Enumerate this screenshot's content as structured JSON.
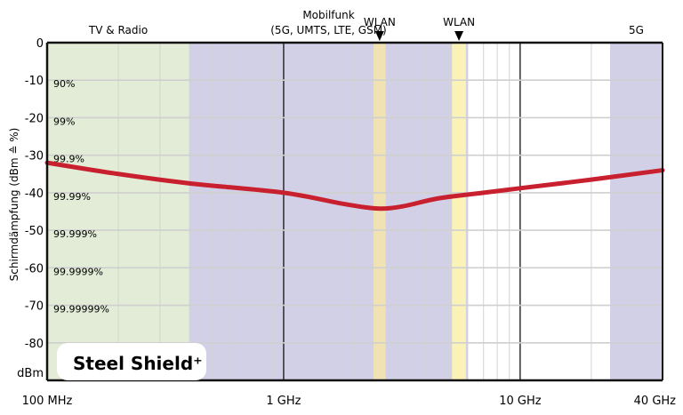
{
  "chart_data": {
    "type": "line",
    "title": "",
    "xscale": "log",
    "xlim_hz": [
      100000000,
      40000000000
    ],
    "ylim": [
      -90,
      0
    ],
    "ylabel": "Schirmdämpfung (dBm ≙ %)",
    "y_unit_label": "dBm",
    "grid": true,
    "x_tick_labels": [
      {
        "hz": 100000000,
        "label": "100 MHz"
      },
      {
        "hz": 1000000000,
        "label": "1 GHz"
      },
      {
        "hz": 10000000000,
        "label": "10 GHz"
      },
      {
        "hz": 40000000000,
        "label": "40 GHz"
      }
    ],
    "y_ticks": [
      0,
      -10,
      -20,
      -30,
      -40,
      -50,
      -60,
      -70,
      -80
    ],
    "y_tick_labels": [
      "0",
      "-10",
      "-20",
      "-30",
      "-40",
      "-50",
      "-60",
      "-70",
      "-80"
    ],
    "percent_labels": [
      {
        "y": -10,
        "label": "90%"
      },
      {
        "y": -20,
        "label": "99%"
      },
      {
        "y": -30,
        "label": "99.9%"
      },
      {
        "y": -40,
        "label": "99.99%"
      },
      {
        "y": -50,
        "label": "99.999%"
      },
      {
        "y": -60,
        "label": "99.9999%"
      },
      {
        "y": -70,
        "label": "99.99999%"
      }
    ],
    "bands": [
      {
        "name": "tv-radio",
        "label": "TV & Radio",
        "from_hz": 100000000,
        "to_hz": 400000000,
        "color": "#e2ecd7"
      },
      {
        "name": "mobilfunk",
        "label_lines": [
          "Mobilfunk",
          "(5G, UMTS, LTE, GSM)"
        ],
        "from_hz": 400000000,
        "to_hz": 6000000000,
        "color": "#d2d0e6"
      },
      {
        "name": "wlan-24",
        "label": "WLAN",
        "marker": true,
        "from_hz": 2400000000,
        "to_hz": 2700000000,
        "color": "#f1e2b4"
      },
      {
        "name": "wlan-5",
        "label": "WLAN",
        "marker": true,
        "from_hz": 5150000000,
        "to_hz": 5900000000,
        "color": "#fbf2b8"
      },
      {
        "name": "5g-mmwave",
        "label": "5G",
        "from_hz": 24000000000,
        "to_hz": 40000000000,
        "color": "#d2d0e6"
      }
    ],
    "series": [
      {
        "color": "#c8202e",
        "points": [
          {
            "x_hz": 100000000,
            "y": -32
          },
          {
            "x_hz": 200000000,
            "y": -35
          },
          {
            "x_hz": 400000000,
            "y": -37.5
          },
          {
            "x_hz": 1000000000,
            "y": -40
          },
          {
            "x_hz": 1800000000,
            "y": -43
          },
          {
            "x_hz": 2500000000,
            "y": -44.2
          },
          {
            "x_hz": 3200000000,
            "y": -43.6
          },
          {
            "x_hz": 4500000000,
            "y": -41.5
          },
          {
            "x_hz": 7000000000,
            "y": -40
          },
          {
            "x_hz": 10000000000,
            "y": -38.8
          },
          {
            "x_hz": 20000000000,
            "y": -36.5
          },
          {
            "x_hz": 40000000000,
            "y": -34
          }
        ]
      }
    ],
    "annotation": "Steel Shield⁺"
  }
}
